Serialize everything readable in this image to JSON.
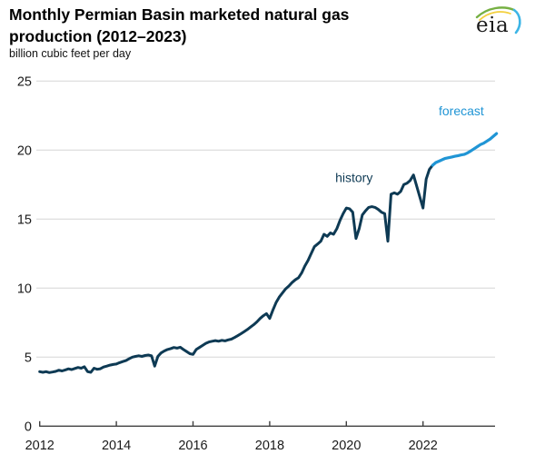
{
  "header": {
    "title_line1": "Monthly Permian Basin marketed natural gas",
    "title_line2": "production (2012–2023)",
    "subtitle": "billion cubic feet per day"
  },
  "logo": {
    "text": "eia"
  },
  "chart_data": {
    "type": "line",
    "title": "Monthly Permian Basin marketed natural gas production (2012–2023)",
    "ylabel": "billion cubic feet per day",
    "xlabel": "",
    "grid": "horizontal",
    "legend_position": "inline-annotations",
    "xlim": [
      2012,
      2023.95
    ],
    "ylim": [
      0,
      25
    ],
    "x_axis": {
      "ticks": [
        2012,
        2014,
        2016,
        2018,
        2020,
        2022
      ]
    },
    "y_axis": {
      "ticks": [
        0,
        5,
        10,
        15,
        20,
        25
      ]
    },
    "annotations": [
      {
        "text": "history",
        "x": 2020.2,
        "y": 17.7,
        "color": "#0e3a54"
      },
      {
        "text": "forecast",
        "x": 2023.0,
        "y": 22.52,
        "color": "#2095d5"
      }
    ],
    "series": [
      {
        "name": "history",
        "color": "#0e3a54",
        "width": 3,
        "points": [
          [
            2012.0,
            3.95
          ],
          [
            2012.083,
            3.9
          ],
          [
            2012.167,
            3.95
          ],
          [
            2012.25,
            3.88
          ],
          [
            2012.333,
            3.92
          ],
          [
            2012.417,
            3.97
          ],
          [
            2012.5,
            4.05
          ],
          [
            2012.583,
            4.0
          ],
          [
            2012.667,
            4.07
          ],
          [
            2012.75,
            4.15
          ],
          [
            2012.833,
            4.1
          ],
          [
            2012.917,
            4.18
          ],
          [
            2013.0,
            4.25
          ],
          [
            2013.083,
            4.2
          ],
          [
            2013.167,
            4.3
          ],
          [
            2013.25,
            3.95
          ],
          [
            2013.333,
            3.9
          ],
          [
            2013.417,
            4.2
          ],
          [
            2013.5,
            4.12
          ],
          [
            2013.583,
            4.16
          ],
          [
            2013.667,
            4.28
          ],
          [
            2013.75,
            4.35
          ],
          [
            2013.833,
            4.42
          ],
          [
            2013.917,
            4.47
          ],
          [
            2014.0,
            4.5
          ],
          [
            2014.083,
            4.6
          ],
          [
            2014.167,
            4.68
          ],
          [
            2014.25,
            4.75
          ],
          [
            2014.333,
            4.88
          ],
          [
            2014.417,
            5.0
          ],
          [
            2014.5,
            5.05
          ],
          [
            2014.583,
            5.1
          ],
          [
            2014.667,
            5.05
          ],
          [
            2014.75,
            5.12
          ],
          [
            2014.833,
            5.15
          ],
          [
            2014.917,
            5.1
          ],
          [
            2015.0,
            4.35
          ],
          [
            2015.083,
            5.05
          ],
          [
            2015.167,
            5.3
          ],
          [
            2015.25,
            5.45
          ],
          [
            2015.333,
            5.55
          ],
          [
            2015.417,
            5.62
          ],
          [
            2015.5,
            5.7
          ],
          [
            2015.583,
            5.65
          ],
          [
            2015.667,
            5.72
          ],
          [
            2015.75,
            5.55
          ],
          [
            2015.833,
            5.4
          ],
          [
            2015.917,
            5.25
          ],
          [
            2016.0,
            5.2
          ],
          [
            2016.083,
            5.55
          ],
          [
            2016.167,
            5.7
          ],
          [
            2016.25,
            5.85
          ],
          [
            2016.333,
            6.0
          ],
          [
            2016.417,
            6.1
          ],
          [
            2016.5,
            6.15
          ],
          [
            2016.583,
            6.2
          ],
          [
            2016.667,
            6.15
          ],
          [
            2016.75,
            6.22
          ],
          [
            2016.833,
            6.18
          ],
          [
            2016.917,
            6.25
          ],
          [
            2017.0,
            6.3
          ],
          [
            2017.083,
            6.42
          ],
          [
            2017.167,
            6.55
          ],
          [
            2017.25,
            6.7
          ],
          [
            2017.333,
            6.85
          ],
          [
            2017.417,
            7.0
          ],
          [
            2017.5,
            7.18
          ],
          [
            2017.583,
            7.35
          ],
          [
            2017.667,
            7.55
          ],
          [
            2017.75,
            7.8
          ],
          [
            2017.833,
            8.0
          ],
          [
            2017.917,
            8.15
          ],
          [
            2018.0,
            7.8
          ],
          [
            2018.083,
            8.4
          ],
          [
            2018.167,
            8.95
          ],
          [
            2018.25,
            9.35
          ],
          [
            2018.333,
            9.65
          ],
          [
            2018.417,
            9.95
          ],
          [
            2018.5,
            10.15
          ],
          [
            2018.583,
            10.4
          ],
          [
            2018.667,
            10.6
          ],
          [
            2018.75,
            10.75
          ],
          [
            2018.833,
            11.1
          ],
          [
            2018.917,
            11.6
          ],
          [
            2019.0,
            12.0
          ],
          [
            2019.083,
            12.5
          ],
          [
            2019.167,
            13.0
          ],
          [
            2019.25,
            13.2
          ],
          [
            2019.333,
            13.4
          ],
          [
            2019.417,
            13.9
          ],
          [
            2019.5,
            13.75
          ],
          [
            2019.583,
            14.0
          ],
          [
            2019.667,
            13.9
          ],
          [
            2019.75,
            14.3
          ],
          [
            2019.833,
            14.9
          ],
          [
            2019.917,
            15.4
          ],
          [
            2020.0,
            15.8
          ],
          [
            2020.083,
            15.75
          ],
          [
            2020.167,
            15.5
          ],
          [
            2020.25,
            13.6
          ],
          [
            2020.333,
            14.3
          ],
          [
            2020.417,
            15.3
          ],
          [
            2020.5,
            15.6
          ],
          [
            2020.583,
            15.85
          ],
          [
            2020.667,
            15.9
          ],
          [
            2020.75,
            15.85
          ],
          [
            2020.833,
            15.7
          ],
          [
            2020.917,
            15.5
          ],
          [
            2021.0,
            15.4
          ],
          [
            2021.083,
            13.4
          ],
          [
            2021.167,
            16.8
          ],
          [
            2021.25,
            16.9
          ],
          [
            2021.333,
            16.8
          ],
          [
            2021.417,
            17.0
          ],
          [
            2021.5,
            17.5
          ],
          [
            2021.583,
            17.6
          ],
          [
            2021.667,
            17.8
          ],
          [
            2021.75,
            18.2
          ],
          [
            2021.833,
            17.4
          ],
          [
            2021.917,
            16.6
          ],
          [
            2022.0,
            15.8
          ],
          [
            2022.083,
            17.9
          ],
          [
            2022.167,
            18.6
          ],
          [
            2022.25,
            18.9
          ]
        ]
      },
      {
        "name": "forecast",
        "color": "#2095d5",
        "width": 3.2,
        "points": [
          [
            2022.25,
            18.9
          ],
          [
            2022.333,
            19.1
          ],
          [
            2022.417,
            19.2
          ],
          [
            2022.5,
            19.3
          ],
          [
            2022.583,
            19.4
          ],
          [
            2022.667,
            19.45
          ],
          [
            2022.75,
            19.5
          ],
          [
            2022.833,
            19.55
          ],
          [
            2022.917,
            19.6
          ],
          [
            2023.0,
            19.65
          ],
          [
            2023.083,
            19.7
          ],
          [
            2023.167,
            19.8
          ],
          [
            2023.25,
            19.95
          ],
          [
            2023.333,
            20.1
          ],
          [
            2023.417,
            20.25
          ],
          [
            2023.5,
            20.4
          ],
          [
            2023.583,
            20.5
          ],
          [
            2023.667,
            20.65
          ],
          [
            2023.75,
            20.8
          ],
          [
            2023.833,
            21.0
          ],
          [
            2023.917,
            21.2
          ]
        ]
      }
    ]
  }
}
